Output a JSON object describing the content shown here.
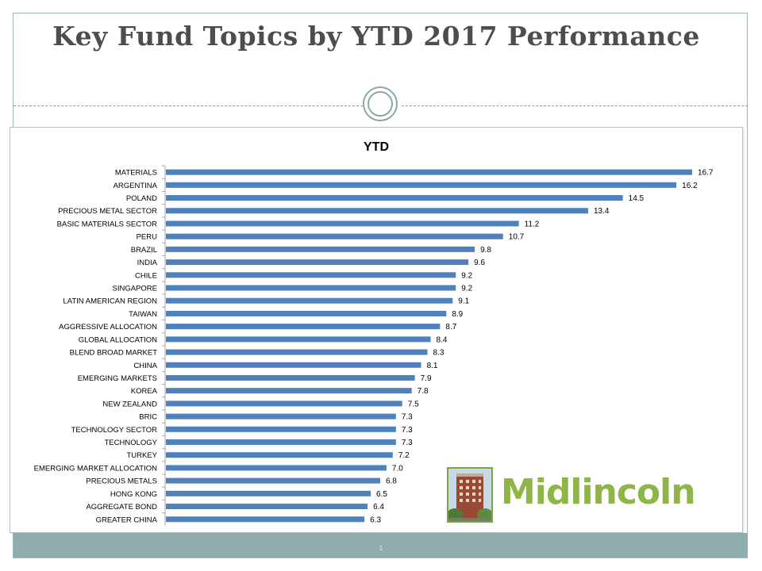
{
  "slide": {
    "title": "Key Fund Topics by YTD  2017 Performance",
    "page_number": "1"
  },
  "logo": {
    "text": "Midlincoln"
  },
  "colors": {
    "bar": "#4f81bd",
    "title": "#4d4d4d",
    "footer": "#8fadad",
    "logo_green": "#8fb447"
  },
  "chart_data": {
    "type": "bar",
    "orientation": "horizontal",
    "title": "YTD",
    "categories": [
      "MATERIALS",
      "ARGENTINA",
      "POLAND",
      "PRECIOUS METAL SECTOR",
      "BASIC MATERIALS SECTOR",
      "PERU",
      "BRAZIL",
      "INDIA",
      "CHILE",
      "SINGAPORE",
      "LATIN AMERICAN REGION",
      "TAIWAN",
      "AGGRESSIVE ALLOCATION",
      "GLOBAL ALLOCATION",
      "BLEND BROAD MARKET",
      "CHINA",
      "EMERGING MARKETS",
      "KOREA",
      "NEW ZEALAND",
      "BRIC",
      "TECHNOLOGY SECTOR",
      "TECHNOLOGY",
      "TURKEY",
      "EMERGING MARKET ALLOCATION",
      "PRECIOUS METALS",
      "HONG KONG",
      "AGGREGATE BOND",
      "GREATER CHINA"
    ],
    "values": [
      16.7,
      16.2,
      14.5,
      13.4,
      11.2,
      10.7,
      9.8,
      9.6,
      9.2,
      9.2,
      9.1,
      8.9,
      8.7,
      8.4,
      8.3,
      8.1,
      7.9,
      7.8,
      7.5,
      7.3,
      7.3,
      7.3,
      7.2,
      7.0,
      6.8,
      6.5,
      6.4,
      6.3
    ],
    "value_labels": [
      "16.7",
      "16.2",
      "14.5",
      "13.4",
      "11.2",
      "10.7",
      "9.8",
      "9.6",
      "9.2",
      "9.2",
      "9.1",
      "8.9",
      "8.7",
      "8.4",
      "8.3",
      "8.1",
      "7.9",
      "7.8",
      "7.5",
      "7.3",
      "7.3",
      "7.3",
      "7.2",
      "7.0",
      "6.8",
      "6.5",
      "6.4",
      "6.3"
    ],
    "xlim": [
      0,
      17
    ],
    "grid": false,
    "legend": "none"
  }
}
